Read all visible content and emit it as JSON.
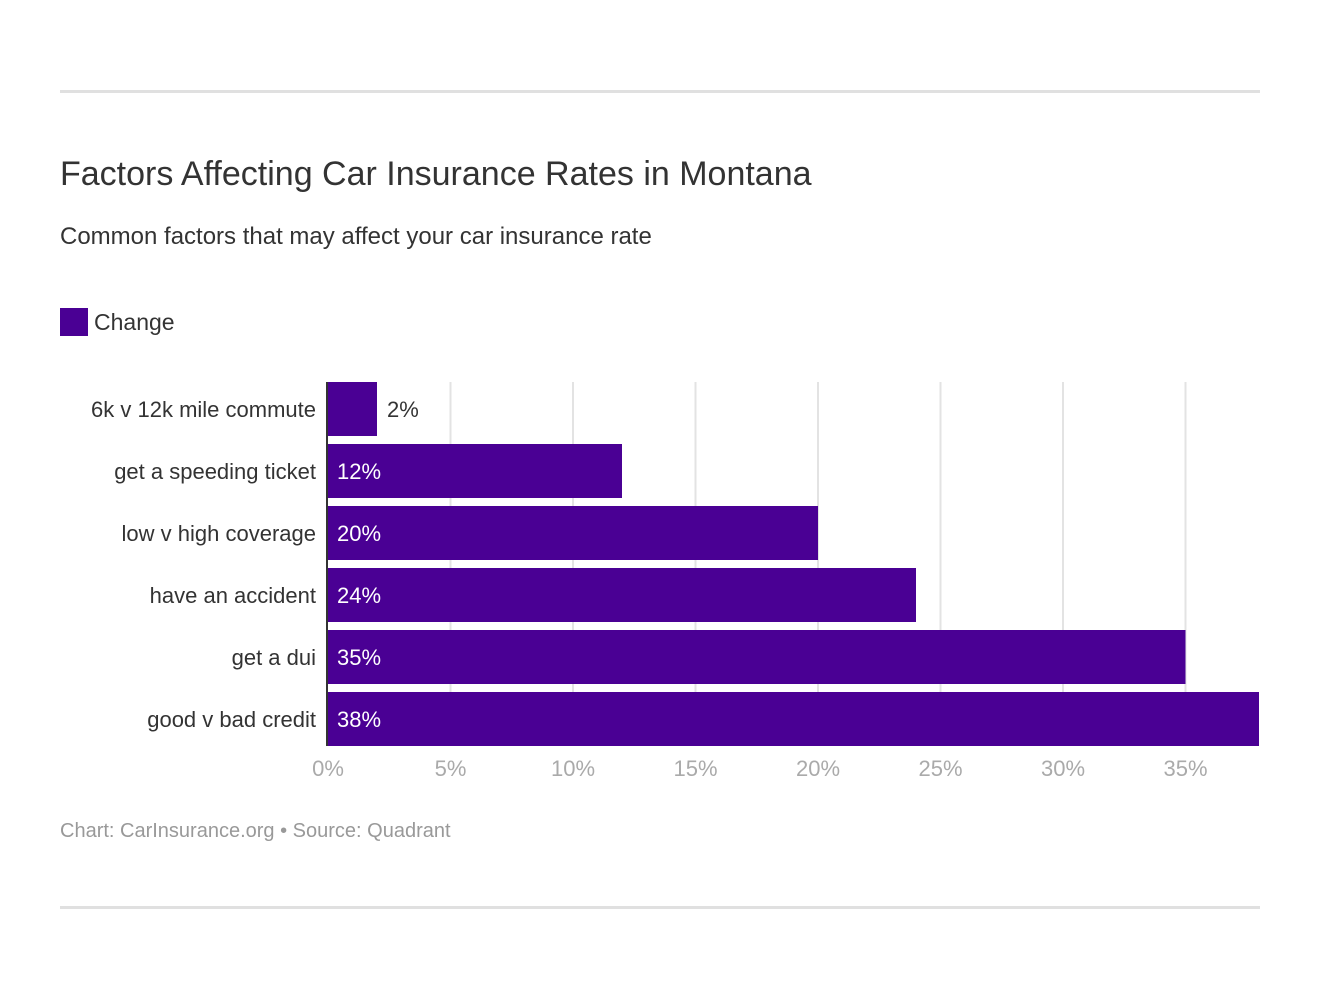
{
  "chart_data": {
    "type": "bar",
    "orientation": "horizontal",
    "title": "Factors Affecting Car Insurance Rates in Montana",
    "subtitle": "Common factors that may affect your car insurance rate",
    "categories": [
      "6k v 12k mile commute",
      "get a speeding ticket",
      "low v high coverage",
      "have an accident",
      "get a dui",
      "good v bad credit"
    ],
    "series": [
      {
        "name": "Change",
        "values": [
          2,
          12,
          20,
          24,
          35,
          38
        ],
        "color": "#4a0094"
      }
    ],
    "value_labels": [
      "2%",
      "12%",
      "20%",
      "24%",
      "35%",
      "38%"
    ],
    "xlim": [
      0,
      38
    ],
    "xticks": [
      0,
      5,
      10,
      15,
      20,
      25,
      30,
      35
    ],
    "xtick_labels": [
      "0%",
      "5%",
      "10%",
      "15%",
      "20%",
      "25%",
      "30%",
      "35%"
    ],
    "grid": true,
    "legend_position": "top-left",
    "footer": "Chart: CarInsurance.org • Source: Quadrant"
  }
}
